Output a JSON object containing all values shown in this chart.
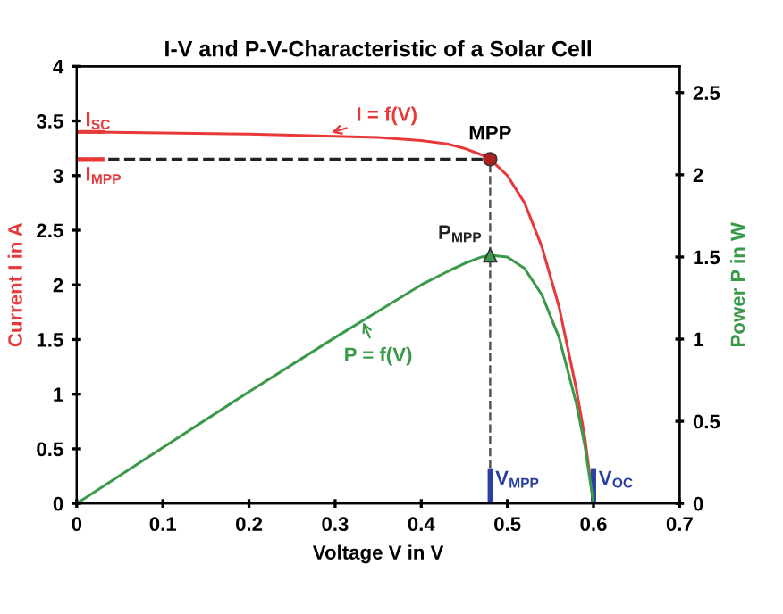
{
  "chart_data": {
    "type": "line",
    "title": "I-V and P-V-Characteristic of a Solar Cell",
    "xlabel": "Voltage V in V",
    "ylabel": "Current I in A",
    "y2label": "Power P in W",
    "xlim": [
      0,
      0.7
    ],
    "xticks": [
      0,
      0.1,
      0.2,
      0.3,
      0.4,
      0.5,
      0.6,
      0.7
    ],
    "ylim": [
      0,
      4
    ],
    "yticks": [
      0,
      0.5,
      1,
      1.5,
      2,
      2.5,
      3,
      3.5,
      4
    ],
    "y2lim": [
      0,
      2.66
    ],
    "y2ticks": [
      0,
      0.5,
      1,
      1.5,
      2,
      2.5
    ],
    "grid": false,
    "series": [
      {
        "name": "I = f(V)",
        "color": "#e8393a",
        "x": [
          0,
          0.1,
          0.2,
          0.3,
          0.35,
          0.4,
          0.43,
          0.45,
          0.47,
          0.48,
          0.5,
          0.52,
          0.54,
          0.56,
          0.58,
          0.59,
          0.6
        ],
        "values": [
          3.4,
          3.39,
          3.38,
          3.36,
          3.35,
          3.32,
          3.29,
          3.25,
          3.19,
          3.15,
          3.0,
          2.75,
          2.35,
          1.8,
          1.05,
          0.6,
          0
        ]
      },
      {
        "name": "P = f(V)",
        "color": "#3a9a4a",
        "axis": "y2",
        "x": [
          0,
          0.1,
          0.2,
          0.3,
          0.35,
          0.4,
          0.43,
          0.45,
          0.47,
          0.48,
          0.5,
          0.52,
          0.54,
          0.56,
          0.58,
          0.59,
          0.6
        ],
        "values": [
          0,
          0.34,
          0.68,
          1.01,
          1.17,
          1.33,
          1.41,
          1.46,
          1.5,
          1.51,
          1.5,
          1.43,
          1.27,
          1.01,
          0.61,
          0.35,
          0
        ]
      },
      {
        "type": "scatter",
        "color": "#b02020",
        "marker": "circle",
        "x": [
          0.48
        ],
        "values": [
          3.15
        ]
      },
      {
        "type": "scatter",
        "color": "#3a9a4a",
        "marker": "triangle",
        "axis": "y2",
        "x": [
          0.48
        ],
        "values": [
          1.51
        ]
      }
    ],
    "ref_lines": [
      {
        "axis": "y",
        "value": 3.4,
        "label": "I$_{SC}$",
        "color": "#e8393a",
        "line_style": "solid"
      },
      {
        "axis": "y",
        "value": 3.15,
        "label": "I$_{MPP}$",
        "color": "#222222",
        "line_style": "dashed"
      },
      {
        "axis": "x",
        "value": 0.48,
        "label": "V$_{MPP}$",
        "color": "#555555",
        "line_style": "dashed"
      },
      {
        "axis": "x",
        "value": 0.6,
        "label": "V$_{OC}$",
        "color": "#2a3fa0",
        "line_style": "solid"
      }
    ],
    "annotations": [
      {
        "text": "MPP",
        "x": 0.48,
        "y": 3.15
      },
      "P$_{MPP}$"
    ]
  }
}
